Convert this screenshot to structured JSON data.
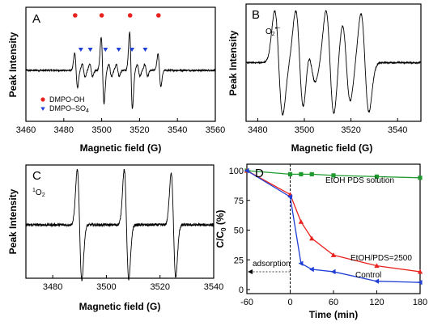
{
  "chart_data": [
    {
      "panel": "A",
      "type": "line",
      "xlabel": "Magnetic field (G)",
      "ylabel": "Peak Intensity",
      "xlim": [
        3460,
        3560
      ],
      "xticks": [
        "3460",
        "3480",
        "3500",
        "3520",
        "3540",
        "3560"
      ],
      "legend": [
        {
          "label": "DMPO-OH",
          "marker": "circle",
          "color": "#e8231f"
        },
        {
          "label": "DMPO–SO",
          "sub": "4",
          "marker": "triangle-down",
          "color": "#1f3fd6"
        }
      ],
      "legend_position": "bottom-left",
      "markers": {
        "dmpo_oh_x": [
          3486,
          3500,
          3515,
          3530
        ],
        "dmpo_so4_x": [
          3489,
          3494,
          3502,
          3509,
          3516,
          3523
        ]
      },
      "peaks": [
        {
          "x": 3486.5,
          "a": 0.36
        },
        {
          "x": 3490.5,
          "a": 0.14
        },
        {
          "x": 3494.5,
          "a": 0.13
        },
        {
          "x": 3500.5,
          "a": 0.7
        },
        {
          "x": 3504.5,
          "a": 0.13
        },
        {
          "x": 3508.5,
          "a": 0.12
        },
        {
          "x": 3515.5,
          "a": 0.8
        },
        {
          "x": 3519.5,
          "a": 0.12
        },
        {
          "x": 3523.5,
          "a": 0.12
        },
        {
          "x": 3530.5,
          "a": 0.34
        }
      ]
    },
    {
      "panel": "B",
      "type": "line",
      "xlabel": "Magnetic field (G)",
      "ylabel": "Peak Intensity",
      "xlim": [
        3475,
        3550
      ],
      "xticks": [
        "3480",
        "3500",
        "3520",
        "3540"
      ],
      "annotation": {
        "text": "O",
        "sub": "2",
        "sup": "•−"
      },
      "peaks": [
        {
          "x": 3489,
          "a": 0.95
        },
        {
          "x": 3498,
          "a": 0.95
        },
        {
          "x": 3503,
          "a": 0.35
        },
        {
          "x": 3511,
          "a": 0.95
        },
        {
          "x": 3518,
          "a": 0.7
        },
        {
          "x": 3526,
          "a": 0.9
        }
      ]
    },
    {
      "panel": "C",
      "type": "line",
      "xlabel": "Magnetic field (G)",
      "ylabel": "Peak Intensity",
      "xlim": [
        3470,
        3540
      ],
      "xticks": [
        "3480",
        "3500",
        "3520",
        "3540"
      ],
      "annotation": {
        "sup": "1",
        "text": "O",
        "sub": "2"
      },
      "peaks": [
        {
          "x": 3490,
          "a": 1.0
        },
        {
          "x": 3507.5,
          "a": 1.0
        },
        {
          "x": 3525,
          "a": 0.95
        }
      ]
    },
    {
      "panel": "D",
      "type": "line",
      "xlabel": "Time (min)",
      "ylabel": "C/C₀ (%)",
      "ylabel_parts": {
        "a": "C/C",
        "sub": "0",
        "b": " (%)"
      },
      "xlim": [
        -60,
        180
      ],
      "ylim": [
        0,
        100
      ],
      "xticks": [
        -60,
        0,
        60,
        120,
        180
      ],
      "yticks": [
        0,
        25,
        50,
        75,
        100
      ],
      "vline_x": 0,
      "annotation": "adsorption",
      "series": [
        {
          "name": "EtOH PDS solution",
          "color": "#1e9a2f",
          "marker": "square",
          "x": [
            -60,
            0,
            15,
            30,
            60,
            120,
            180
          ],
          "y": [
            100,
            97,
            97,
            97,
            96,
            95,
            94
          ]
        },
        {
          "name": "EtOH/PDS=2500",
          "color": "#e8231f",
          "marker": "triangle-up",
          "x": [
            -60,
            0,
            15,
            30,
            60,
            120,
            180
          ],
          "y": [
            100,
            80,
            57,
            43,
            29,
            20,
            15
          ]
        },
        {
          "name": "Control",
          "color": "#1f3fd6",
          "marker": "triangle-left",
          "x": [
            -60,
            0,
            15,
            30,
            60,
            120,
            180
          ],
          "y": [
            100,
            78,
            22,
            17,
            15,
            7,
            6
          ]
        }
      ]
    }
  ]
}
